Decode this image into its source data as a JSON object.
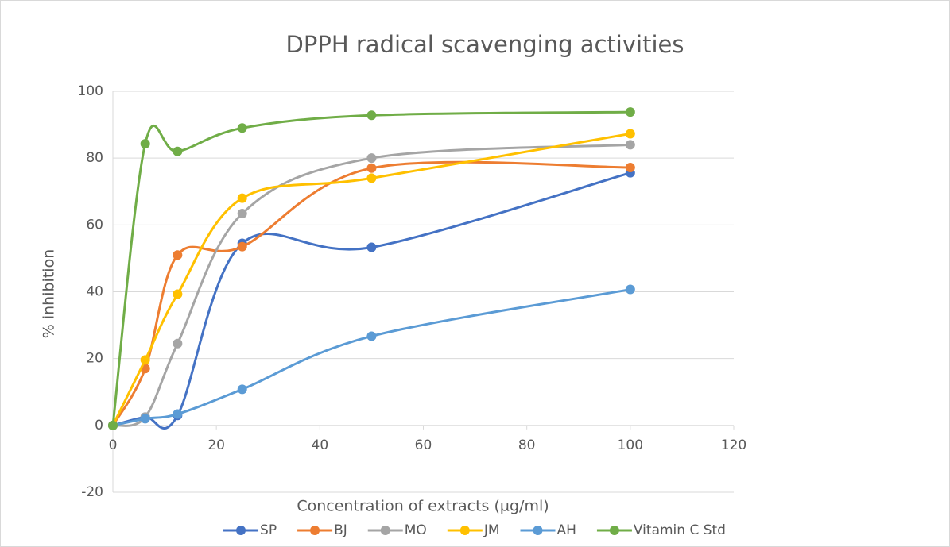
{
  "chart_data": {
    "type": "line",
    "title": "DPPH radical scavenging activities",
    "xlabel": "Concentration of extracts (µg/ml)",
    "ylabel": "% inhibition",
    "x": [
      0,
      6.25,
      12.5,
      25,
      50,
      100
    ],
    "series": [
      {
        "name": "SP",
        "color": "#4472c4",
        "values": [
          0,
          2.5,
          3,
          54.5,
          53.3,
          75.6
        ]
      },
      {
        "name": "BJ",
        "color": "#ed7d31",
        "values": [
          0,
          17,
          51,
          53.5,
          77,
          77.2
        ]
      },
      {
        "name": "MO",
        "color": "#a5a5a5",
        "values": [
          0,
          2.5,
          24.5,
          63.4,
          80,
          84
        ]
      },
      {
        "name": "JM",
        "color": "#ffc000",
        "values": [
          0,
          19.6,
          39.3,
          68,
          74,
          87.3
        ]
      },
      {
        "name": "AH",
        "color": "#5b9bd5",
        "values": [
          0,
          2,
          3.4,
          10.8,
          26.7,
          40.7
        ]
      },
      {
        "name": "Vitamin C Std",
        "color": "#70ad47",
        "values": [
          0,
          84.3,
          82,
          89,
          92.8,
          93.8
        ]
      }
    ],
    "xlim": [
      0,
      120
    ],
    "xticks": [
      0,
      20,
      40,
      60,
      80,
      100,
      120
    ],
    "ylim": [
      -20,
      100
    ],
    "yticks": [
      -20,
      0,
      20,
      40,
      60,
      80,
      100
    ],
    "grid": true,
    "smooth": true,
    "legend": "bottom"
  }
}
